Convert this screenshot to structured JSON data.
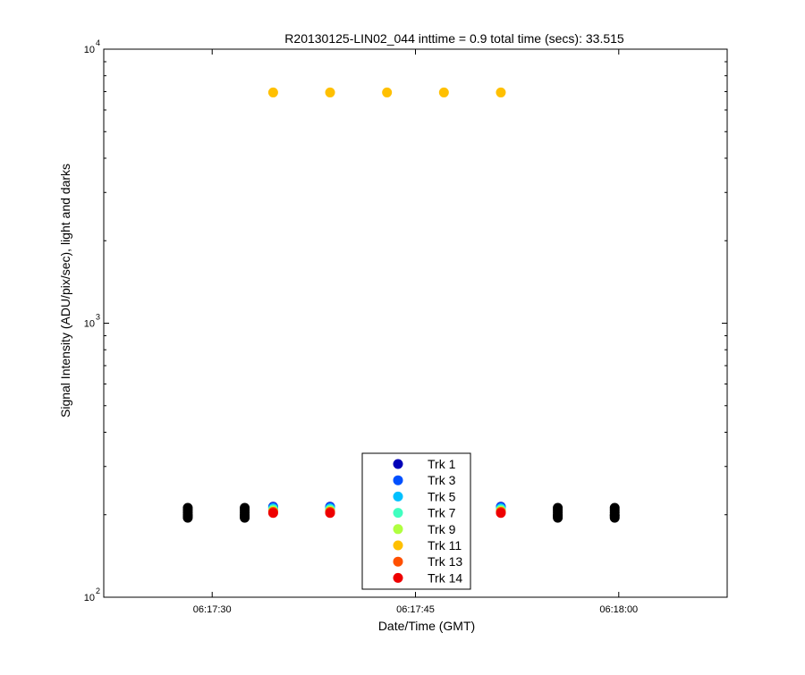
{
  "chart_data": {
    "type": "scatter",
    "title": "R20130125-LIN02_044 inttime = 0.9 total time (secs): 33.515",
    "xlabel": "Date/Time (GMT)",
    "ylabel": "Signal Intensity (ADU/pix/sec), light and darks",
    "x_scale": "time",
    "y_scale": "log",
    "xlim": [
      "06:17:22",
      "06:18:08"
    ],
    "ylim": [
      100,
      10000
    ],
    "x_ticks": [
      "06:17:30",
      "06:17:45",
      "06:18:00"
    ],
    "y_ticks": [
      {
        "base": "10",
        "exp": "2",
        "value": 100
      },
      {
        "base": "10",
        "exp": "3",
        "value": 1000
      },
      {
        "base": "10",
        "exp": "4",
        "value": 10000
      }
    ],
    "grid": false,
    "legend_position": "bottom-center",
    "colors": {
      "Trk 1": "#0000b8",
      "Trk 3": "#0050ff",
      "Trk 5": "#00c0ff",
      "Trk 7": "#40ffc0",
      "Trk 9": "#b0ff40",
      "Trk 11": "#ffc000",
      "Trk 13": "#ff5000",
      "Trk 14": "#ee0000",
      "darks": "#000000"
    },
    "series": [
      {
        "name": "Trk 1",
        "x": [
          "06:17:34.5",
          "06:17:38.7",
          "06:17:51.3"
        ],
        "y": [
          214,
          214,
          214
        ]
      },
      {
        "name": "Trk 3",
        "x": [
          "06:17:34.5",
          "06:17:38.7",
          "06:17:51.3"
        ],
        "y": [
          213,
          213,
          213
        ]
      },
      {
        "name": "Trk 5",
        "x": [
          "06:17:34.5",
          "06:17:38.7",
          "06:17:51.3"
        ],
        "y": [
          211,
          211,
          211
        ]
      },
      {
        "name": "Trk 7",
        "x": [
          "06:17:34.5",
          "06:17:38.7",
          "06:17:51.3"
        ],
        "y": [
          209,
          209,
          209
        ]
      },
      {
        "name": "Trk 9",
        "x": [
          "06:17:34.5",
          "06:17:38.7",
          "06:17:51.3"
        ],
        "y": [
          207,
          207,
          207
        ]
      },
      {
        "name": "Trk 11",
        "x": [
          "06:17:34.5",
          "06:17:38.7",
          "06:17:42.9",
          "06:17:47.1",
          "06:17:51.3"
        ],
        "y": [
          6950,
          6950,
          6950,
          6950,
          6950
        ]
      },
      {
        "name": "Trk 13",
        "x": [
          "06:17:34.5",
          "06:17:38.7",
          "06:17:51.3"
        ],
        "y": [
          205,
          205,
          205
        ]
      },
      {
        "name": "Trk 14",
        "x": [
          "06:17:34.5",
          "06:17:38.7",
          "06:17:51.3"
        ],
        "y": [
          203,
          203,
          203
        ]
      },
      {
        "name": "darks",
        "x": [
          "06:17:28.2",
          "06:17:28.2",
          "06:17:28.2",
          "06:17:28.2",
          "06:17:28.2",
          "06:17:28.2",
          "06:17:32.4",
          "06:17:32.4",
          "06:17:32.4",
          "06:17:32.4",
          "06:17:32.4",
          "06:17:32.4",
          "06:17:55.5",
          "06:17:55.5",
          "06:17:55.5",
          "06:17:55.5",
          "06:17:55.5",
          "06:17:55.5",
          "06:17:59.7",
          "06:17:59.7",
          "06:17:59.7",
          "06:17:59.7",
          "06:17:59.7",
          "06:17:59.7"
        ],
        "y": [
          212,
          208,
          204,
          200,
          198,
          195,
          212,
          208,
          204,
          200,
          198,
          195,
          212,
          208,
          204,
          200,
          198,
          195,
          212,
          208,
          204,
          200,
          198,
          195
        ]
      }
    ],
    "legend": [
      {
        "label": "Trk 1",
        "color": "#0000b8"
      },
      {
        "label": "Trk 3",
        "color": "#0050ff"
      },
      {
        "label": "Trk 5",
        "color": "#00c0ff"
      },
      {
        "label": "Trk 7",
        "color": "#40ffc0"
      },
      {
        "label": "Trk 9",
        "color": "#b0ff40"
      },
      {
        "label": "Trk 11",
        "color": "#ffc000"
      },
      {
        "label": "Trk 13",
        "color": "#ff5000"
      },
      {
        "label": "Trk 14",
        "color": "#ee0000"
      }
    ]
  }
}
